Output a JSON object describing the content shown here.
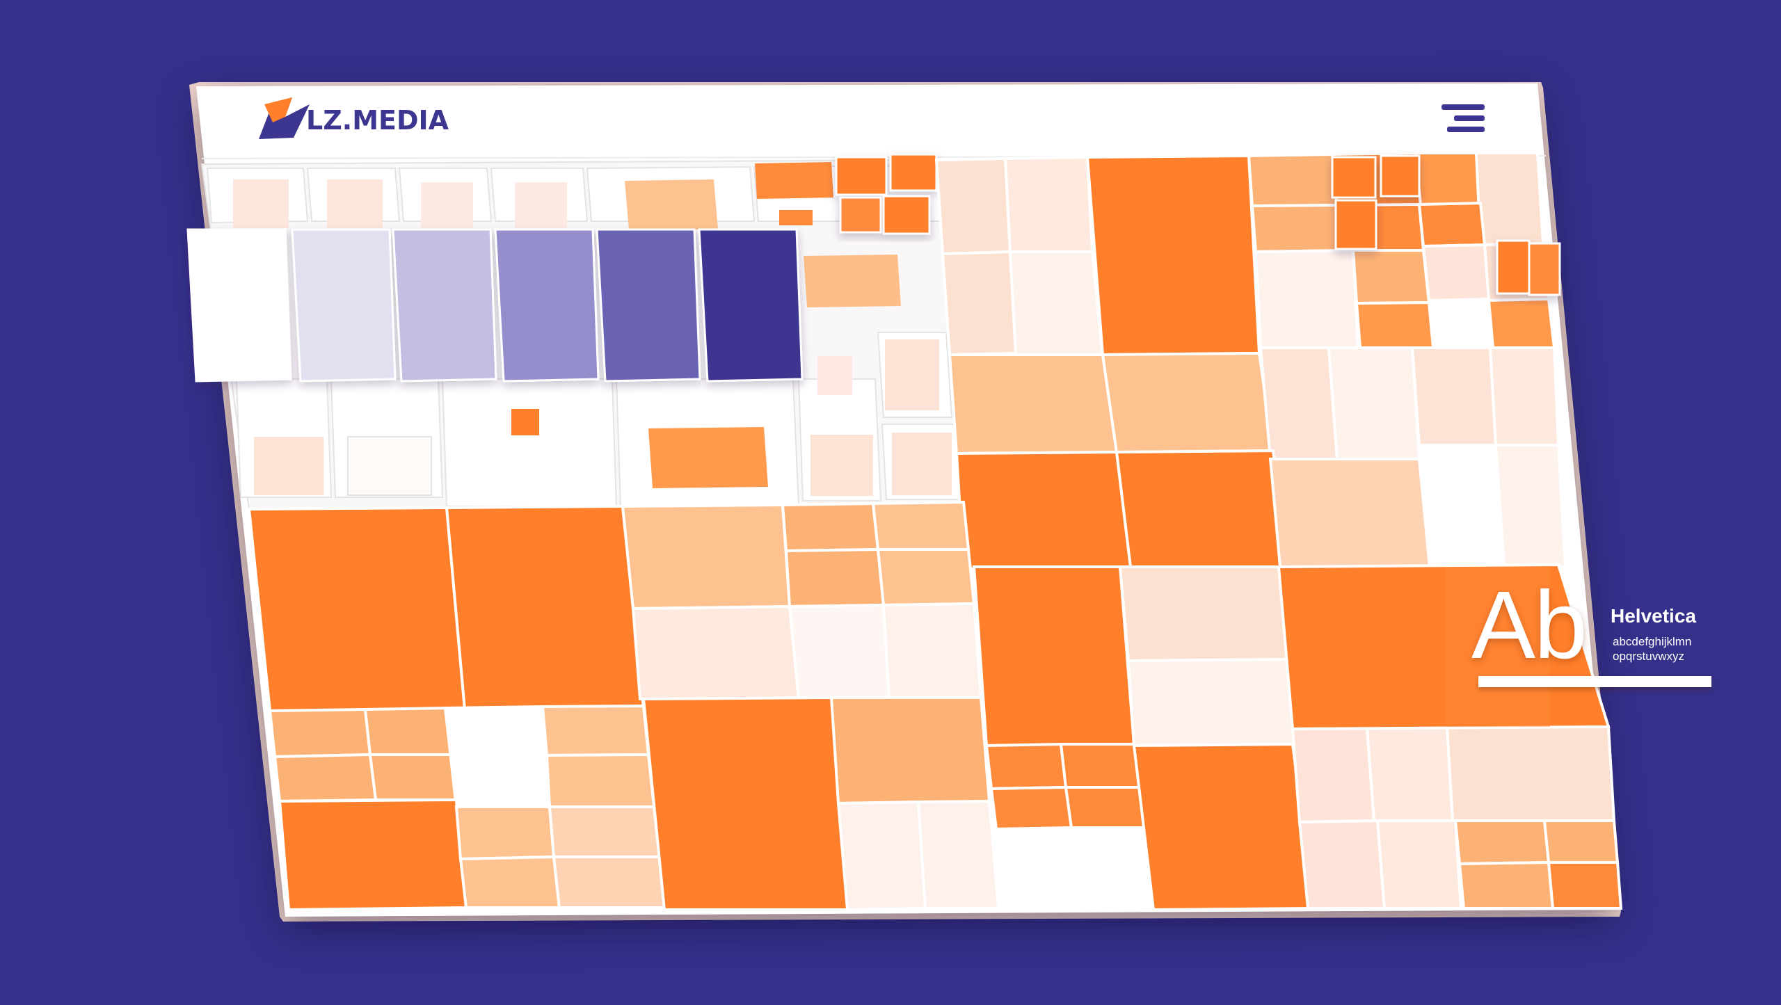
{
  "brand": {
    "logo_text": "LZ.MEDIA",
    "logo_icon": "brand-arrow-icon"
  },
  "header": {
    "menu_icon": "hamburger-menu-icon"
  },
  "colors": {
    "background": "#35308a",
    "board": "#ffffff",
    "accent_orange": "#ff7f2a",
    "accent_purple": "#3d3690"
  },
  "palette_swatches": [
    "#ffffff",
    "#e1e0f0",
    "#c2bfe2",
    "#948fcc",
    "#6a63b4",
    "#3d3690"
  ],
  "typography": {
    "sample_glyph": "Ab",
    "font_name": "Helvetica",
    "sample_line_1": "abcdefghijklmn",
    "sample_line_2": "opqrstuvwxyz"
  }
}
